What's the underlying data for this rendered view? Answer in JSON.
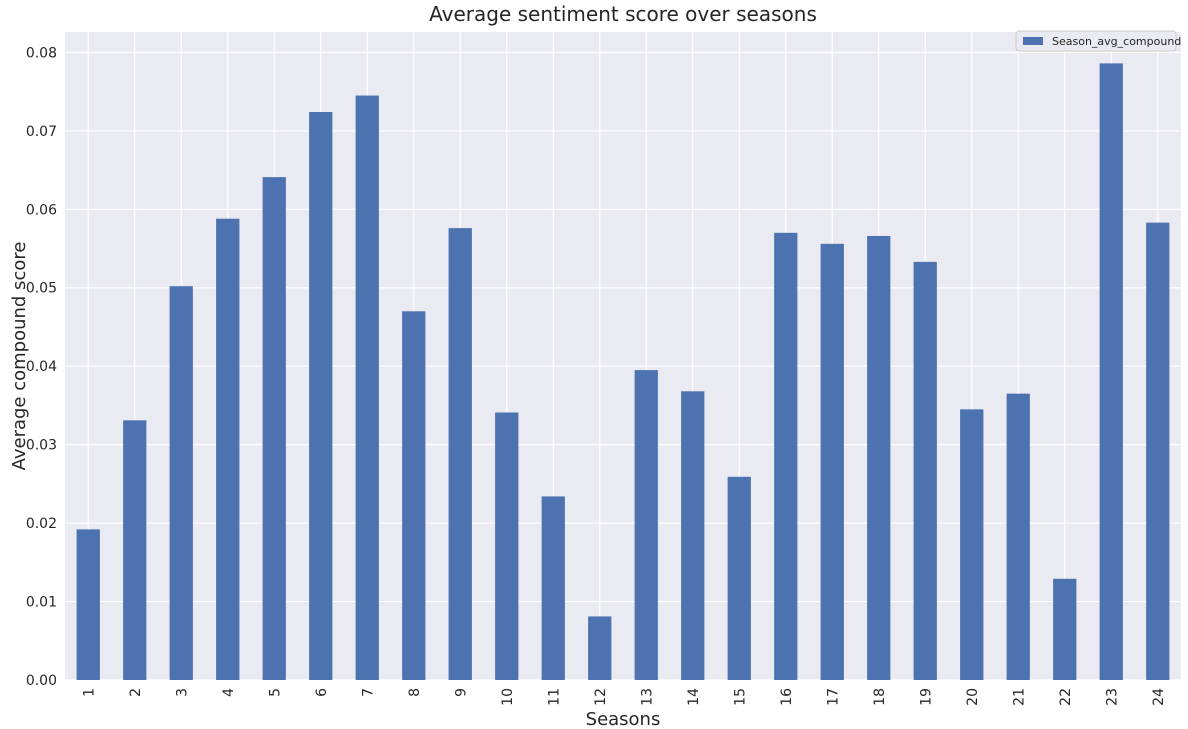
{
  "chart_data": {
    "type": "bar",
    "title": "Average sentiment score over seasons",
    "xlabel": "Seasons",
    "ylabel": "Average compound score",
    "categories": [
      "1",
      "2",
      "3",
      "4",
      "5",
      "6",
      "7",
      "8",
      "9",
      "10",
      "11",
      "12",
      "13",
      "14",
      "15",
      "16",
      "17",
      "18",
      "19",
      "20",
      "21",
      "22",
      "23",
      "24"
    ],
    "series": [
      {
        "name": "Season_avg_compound",
        "values": [
          0.0192,
          0.0331,
          0.0502,
          0.0588,
          0.0641,
          0.0724,
          0.0745,
          0.047,
          0.0576,
          0.0341,
          0.0234,
          0.0081,
          0.0395,
          0.0368,
          0.0259,
          0.057,
          0.0556,
          0.0566,
          0.0533,
          0.0345,
          0.0365,
          0.0129,
          0.0786,
          0.0583
        ]
      }
    ],
    "ylim": [
      0,
      0.0826
    ],
    "yticks": [
      "0.00",
      "0.01",
      "0.02",
      "0.03",
      "0.04",
      "0.05",
      "0.06",
      "0.07",
      "0.08"
    ],
    "ytick_values": [
      0,
      0.01,
      0.02,
      0.03,
      0.04,
      0.05,
      0.06,
      0.07,
      0.08
    ],
    "grid": true,
    "legend_position": "top-right",
    "colors": {
      "bar": "#4c72b0",
      "plot_background": "#eaeaf2",
      "grid": "#ffffff",
      "text": "#262626"
    }
  }
}
